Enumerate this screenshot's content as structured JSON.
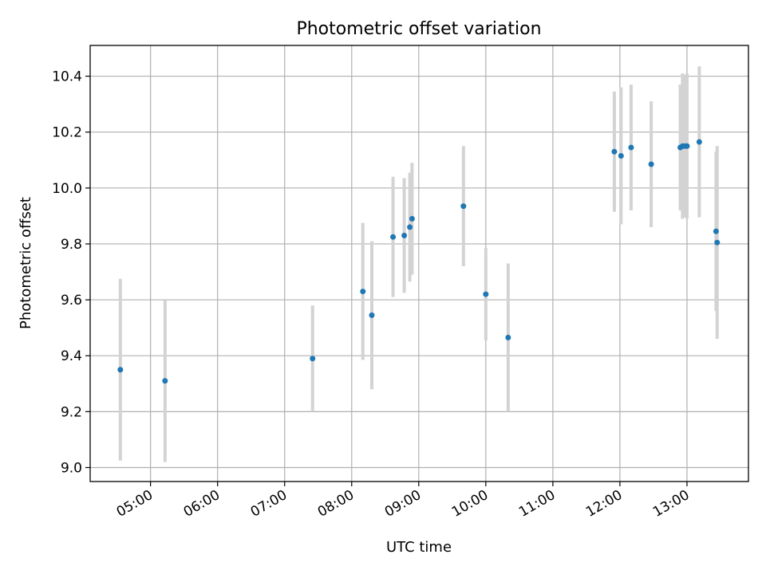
{
  "chart_data": {
    "type": "scatter",
    "title": "Photometric offset variation",
    "xlabel": "UTC time",
    "ylabel": "Photometric offset",
    "grid": true,
    "ylim": [
      8.95,
      10.51
    ],
    "xlim": [
      "04:06",
      "13:55"
    ],
    "yticks": [
      "9.0",
      "9.2",
      "9.4",
      "9.6",
      "9.8",
      "10.0",
      "10.2",
      "10.4"
    ],
    "xticks": [
      "05:00",
      "06:00",
      "07:00",
      "08:00",
      "09:00",
      "10:00",
      "11:00",
      "12:00",
      "13:00"
    ],
    "colors": {
      "point": "#1f77b4",
      "errorbar": "#d3d3d3",
      "grid": "#b0b0b0"
    },
    "points": [
      {
        "x": "04:33",
        "y": 9.35,
        "err": 0.325
      },
      {
        "x": "05:13",
        "y": 9.31,
        "err": 0.29
      },
      {
        "x": "07:25",
        "y": 9.39,
        "err": 0.19
      },
      {
        "x": "08:10",
        "y": 9.63,
        "err": 0.245
      },
      {
        "x": "08:18",
        "y": 9.545,
        "err": 0.265
      },
      {
        "x": "08:37",
        "y": 9.825,
        "err": 0.215
      },
      {
        "x": "08:47",
        "y": 9.83,
        "err": 0.205
      },
      {
        "x": "08:52",
        "y": 9.86,
        "err": 0.195
      },
      {
        "x": "08:54",
        "y": 9.89,
        "err": 0.2
      },
      {
        "x": "09:40",
        "y": 9.935,
        "err": 0.215
      },
      {
        "x": "10:00",
        "y": 9.62,
        "err": 0.165
      },
      {
        "x": "10:20",
        "y": 9.465,
        "err": 0.265
      },
      {
        "x": "11:55",
        "y": 10.13,
        "err": 0.215
      },
      {
        "x": "12:01",
        "y": 10.115,
        "err": 0.245
      },
      {
        "x": "12:10",
        "y": 10.145,
        "err": 0.225
      },
      {
        "x": "12:28",
        "y": 10.085,
        "err": 0.225
      },
      {
        "x": "12:54",
        "y": 10.145,
        "err": 0.225
      },
      {
        "x": "12:56",
        "y": 10.15,
        "err": 0.26
      },
      {
        "x": "12:58",
        "y": 10.15,
        "err": 0.255
      },
      {
        "x": "13:00",
        "y": 10.15,
        "err": 0.26
      },
      {
        "x": "13:11",
        "y": 10.165,
        "err": 0.27
      },
      {
        "x": "13:26",
        "y": 9.845,
        "err": 0.285
      },
      {
        "x": "13:27",
        "y": 9.805,
        "err": 0.345
      }
    ]
  }
}
